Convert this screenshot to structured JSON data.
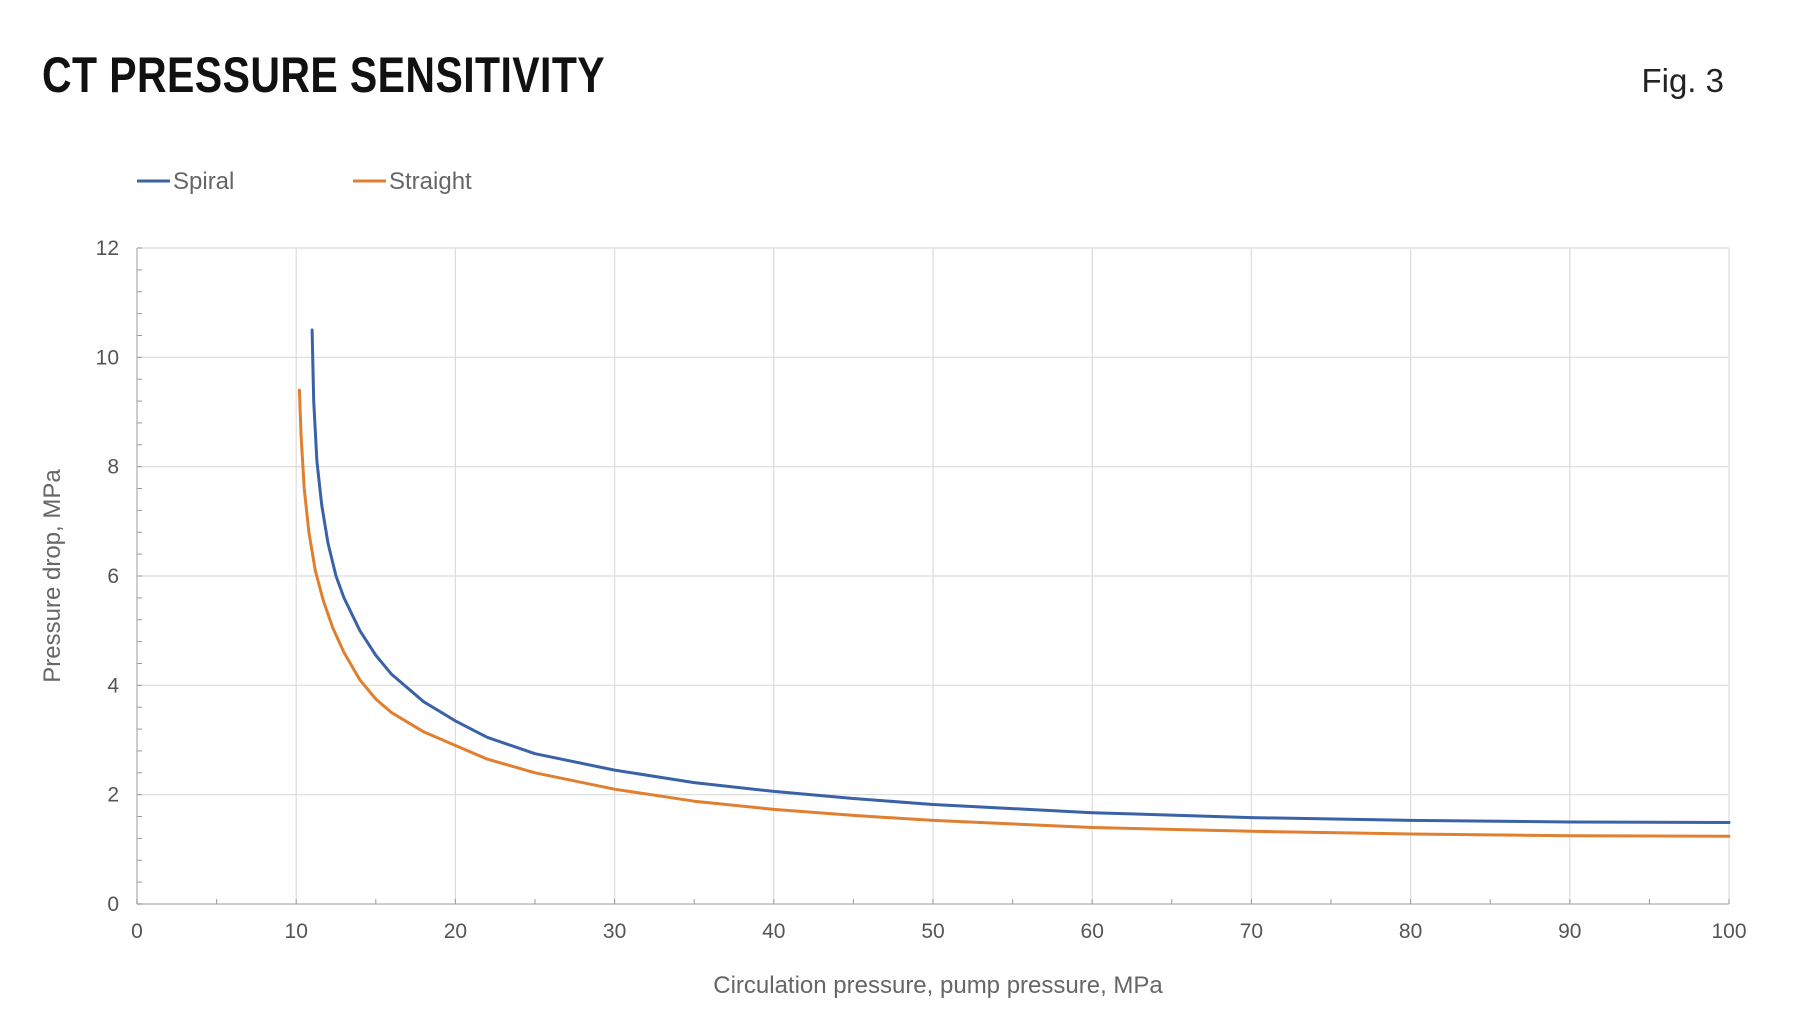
{
  "header": {
    "title": "CT PRESSURE SENSITIVITY",
    "figure_label": "Fig. 3"
  },
  "chart_data": {
    "type": "line",
    "title": "CT PRESSURE SENSITIVITY",
    "xlabel": "Circulation pressure, pump pressure, MPa",
    "ylabel": "Pressure drop, MPa",
    "xlim": [
      0,
      100
    ],
    "ylim": [
      0,
      12
    ],
    "x_ticks": [
      0,
      10,
      20,
      30,
      40,
      50,
      60,
      70,
      80,
      90,
      100
    ],
    "y_ticks": [
      0,
      2,
      4,
      6,
      8,
      10,
      12
    ],
    "grid": true,
    "legend_position": "top-left",
    "series": [
      {
        "name": "Spiral",
        "color": "#3a62a7",
        "x": [
          11.0,
          11.1,
          11.3,
          11.6,
          12,
          12.5,
          13,
          14,
          15,
          16,
          18,
          20,
          22,
          25,
          30,
          35,
          40,
          45,
          50,
          60,
          70,
          80,
          90,
          100
        ],
        "y": [
          10.5,
          9.2,
          8.1,
          7.3,
          6.6,
          6.0,
          5.6,
          5.0,
          4.55,
          4.2,
          3.7,
          3.35,
          3.05,
          2.75,
          2.45,
          2.22,
          2.06,
          1.93,
          1.82,
          1.67,
          1.58,
          1.53,
          1.5,
          1.49
        ]
      },
      {
        "name": "Straight",
        "color": "#e07f2f",
        "x": [
          10.2,
          10.3,
          10.5,
          10.8,
          11.2,
          11.7,
          12.3,
          13,
          14,
          15,
          16,
          18,
          20,
          22,
          25,
          30,
          35,
          40,
          45,
          50,
          60,
          70,
          80,
          90,
          100
        ],
        "y": [
          9.4,
          8.6,
          7.6,
          6.8,
          6.1,
          5.55,
          5.05,
          4.6,
          4.1,
          3.75,
          3.5,
          3.15,
          2.9,
          2.65,
          2.4,
          2.1,
          1.88,
          1.73,
          1.62,
          1.53,
          1.4,
          1.33,
          1.28,
          1.25,
          1.24
        ]
      }
    ]
  }
}
